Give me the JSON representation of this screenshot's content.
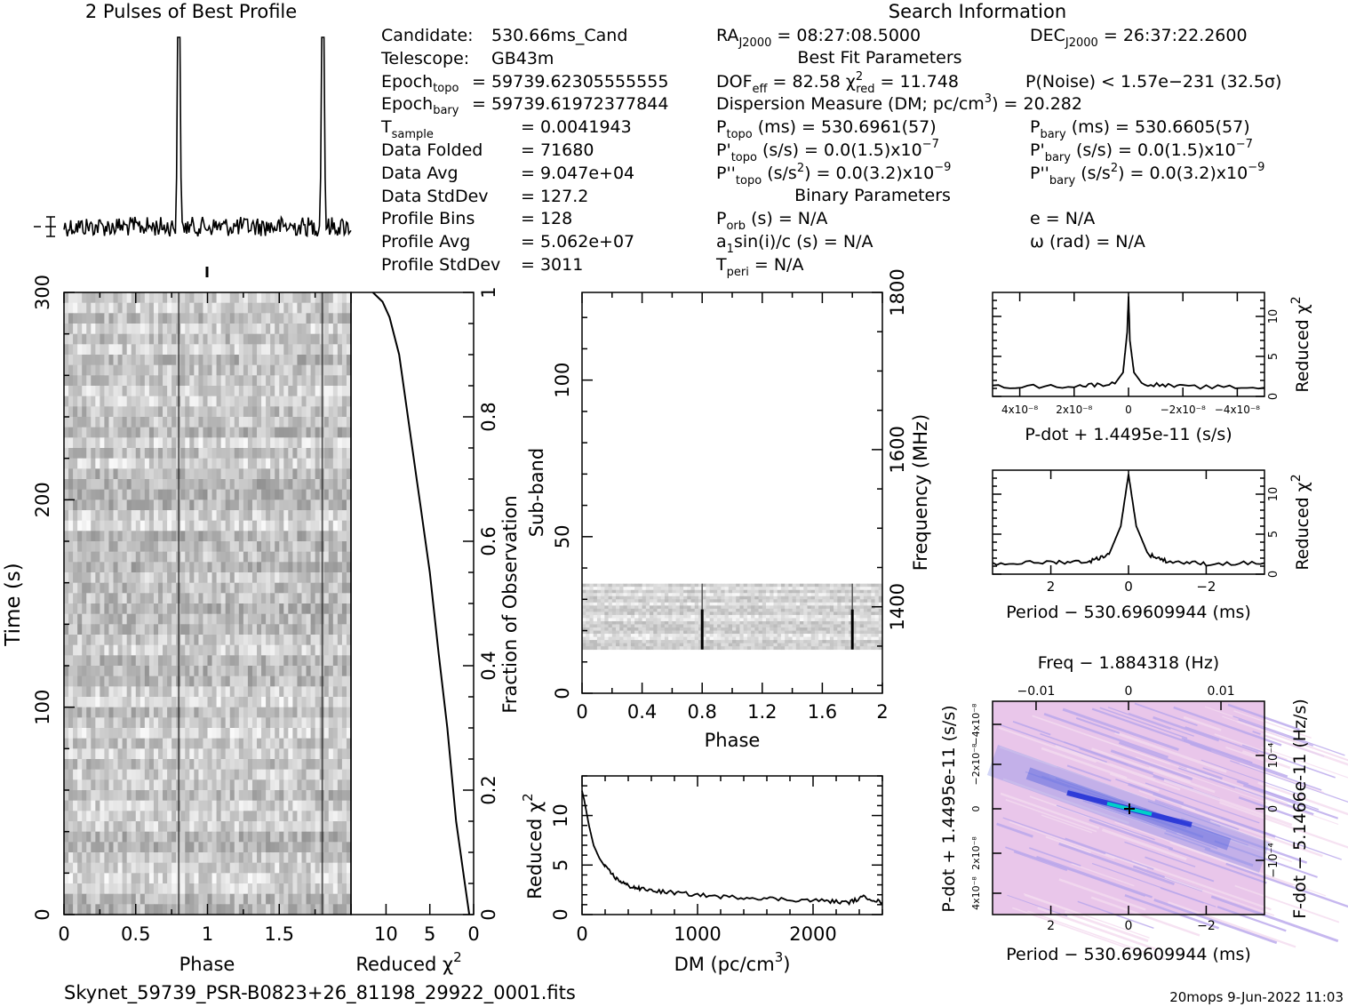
{
  "header": {
    "profile_title": "2 Pulses of Best Profile",
    "search_title": "Search Information",
    "best_fit_title": "Best Fit Parameters",
    "binary_title": "Binary Parameters"
  },
  "info_left": [
    {
      "label": "Candidate:",
      "value": "530.66ms_Cand"
    },
    {
      "label": "Telescope:",
      "value": "GB43m"
    },
    {
      "label": "Epoch_topo",
      "value": "= 59739.62305555555"
    },
    {
      "label": "Epoch_bary",
      "value": "= 59739.61972377844"
    },
    {
      "label": "T_sample",
      "value": "=  0.0041943"
    },
    {
      "label": "Data Folded",
      "value": "=  71680"
    },
    {
      "label": "Data Avg",
      "value": "=  9.047e+04"
    },
    {
      "label": "Data StdDev",
      "value": "=  127.2"
    },
    {
      "label": "Profile Bins",
      "value": "=  128"
    },
    {
      "label": "Profile Avg",
      "value": "=  5.062e+07"
    },
    {
      "label": "Profile StdDev",
      "value": "=  3011"
    }
  ],
  "info_mid": [
    "RA_J2000 = 08:27:08.5000",
    "DOF_eff = 82.58  χ²_red = 11.748",
    "Dispersion Measure (DM; pc/cm³) = 20.282",
    "P_topo (ms) =  530.6961(57)",
    "P'_topo (s/s) = 0.0(1.5)x10⁻⁷",
    "P''_topo (s/s²) = 0.0(3.2)x10⁻⁹",
    "P_orb (s) = N/A",
    "a₁sin(i)/c (s) = N/A",
    "T_peri = N/A"
  ],
  "info_right": [
    "DEC_J2000 = 26:37:22.2600",
    "P(Noise) < 1.57e-231  (32.5σ)",
    "P_bary (ms) =  530.6605(57)",
    "P'_bary (s/s) = 0.0(1.5)x10⁻⁷",
    "P''_bary (s/s²) = 0.0(3.2)x10⁻⁹",
    "e = N/A",
    "ω (rad) = N/A"
  ],
  "footer": {
    "filename": "Skynet_59739_PSR-B0823+26_81198_29922_0001.fits",
    "stamp": "20mops  9-Jun-2022 11:03"
  },
  "chart_data": [
    {
      "type": "line",
      "title": "2 Pulses of Best Profile",
      "x": "phase 0-2",
      "peaks_at_phase": [
        0.8,
        1.8
      ]
    },
    {
      "type": "heatmap",
      "xlabel": "Phase",
      "ylabel": "Time (s)",
      "xlim": [
        0,
        2
      ],
      "ylim": [
        0,
        300
      ],
      "xticks": [
        "0",
        "0.5",
        "1",
        "1.5"
      ],
      "yticks": [
        "0",
        "100",
        "200",
        "300"
      ],
      "pulse_phase": [
        0.8,
        1.8
      ]
    },
    {
      "type": "line",
      "xlabel": "Reduced χ²",
      "ylabel": "Fraction of Observation",
      "xticks": [
        "10",
        "5",
        "0"
      ],
      "yticks": [
        "0",
        "0.2",
        "0.4",
        "0.6",
        "0.8",
        "1"
      ],
      "x_reversed": true,
      "xlim": [
        14,
        0
      ],
      "points": [
        [
          0.5,
          0
        ],
        [
          1,
          0.05
        ],
        [
          2,
          0.15
        ],
        [
          3,
          0.3
        ],
        [
          4,
          0.42
        ],
        [
          5,
          0.55
        ],
        [
          6,
          0.65
        ],
        [
          6.5,
          0.7
        ],
        [
          7.2,
          0.77
        ],
        [
          7.8,
          0.83
        ],
        [
          8.5,
          0.9
        ],
        [
          9.6,
          0.96
        ],
        [
          10.4,
          0.985
        ],
        [
          11.5,
          1
        ]
      ]
    },
    {
      "type": "heatmap",
      "xlabel": "Phase",
      "ylabel": "Sub-band",
      "y2label": "Frequency (MHz)",
      "xlim": [
        0,
        2
      ],
      "ylim": [
        0,
        128
      ],
      "xticks": [
        "0",
        "0.4",
        "0.8",
        "1.2",
        "1.6",
        "2"
      ],
      "yticks": [
        "0",
        "50",
        "100"
      ],
      "y2ticks": [
        "1400",
        "1600",
        "1800"
      ],
      "data_subbands": [
        14,
        35
      ],
      "pulse_phase": [
        0.8,
        1.8
      ]
    },
    {
      "type": "line",
      "xlabel": "DM (pc/cm³)",
      "ylabel": "Reduced χ²",
      "xlim": [
        0,
        2600
      ],
      "ylim": [
        0,
        14
      ],
      "xticks": [
        "0",
        "1000",
        "2000"
      ],
      "yticks": [
        "0",
        "5",
        "10"
      ],
      "points": [
        [
          0,
          12.5
        ],
        [
          20,
          11.5
        ],
        [
          60,
          9
        ],
        [
          100,
          7
        ],
        [
          150,
          5.7
        ],
        [
          200,
          4.8
        ],
        [
          300,
          3.6
        ],
        [
          400,
          2.9
        ],
        [
          500,
          2.6
        ],
        [
          700,
          2.3
        ],
        [
          900,
          2.1
        ],
        [
          1200,
          1.8
        ],
        [
          1500,
          1.7
        ],
        [
          1800,
          1.5
        ],
        [
          2100,
          1.4
        ],
        [
          2300,
          1.2
        ],
        [
          2450,
          1.8
        ],
        [
          2600,
          1.2
        ]
      ]
    },
    {
      "type": "line",
      "xlabel": "P-dot + 1.4495e-11 (s/s)",
      "ylabel": "Reduced χ²",
      "xticks": [
        "4x10⁻⁸",
        "2x10⁻⁸",
        "0",
        "−2x10⁻⁸",
        "−4x10⁻⁸"
      ],
      "yticks": [
        "0",
        "5",
        "10"
      ],
      "xlim": [
        5e-08,
        -5e-08
      ],
      "ylim": [
        0,
        13
      ],
      "points": [
        [
          5e-08,
          1.2
        ],
        [
          2e-08,
          1.3
        ],
        [
          5e-09,
          1.6
        ],
        [
          2e-09,
          3
        ],
        [
          5e-10,
          8
        ],
        [
          0,
          12.5
        ],
        [
          -5e-10,
          7
        ],
        [
          -2e-09,
          3
        ],
        [
          -5e-09,
          1.6
        ],
        [
          -2e-08,
          1.2
        ],
        [
          -5e-08,
          1.1
        ]
      ]
    },
    {
      "type": "line",
      "xlabel": "Period − 530.69609944 (ms)",
      "ylabel": "Reduced χ²",
      "xticks": [
        "2",
        "0",
        "−2"
      ],
      "yticks": [
        "0",
        "5",
        "10"
      ],
      "xlim": [
        3.5,
        -3.5
      ],
      "ylim": [
        0,
        13
      ],
      "points": [
        [
          3.5,
          1.3
        ],
        [
          2,
          1.5
        ],
        [
          1,
          1.6
        ],
        [
          0.5,
          2.5
        ],
        [
          0.2,
          6
        ],
        [
          0,
          12.5
        ],
        [
          -0.2,
          6
        ],
        [
          -0.5,
          2.5
        ],
        [
          -1,
          1.6
        ],
        [
          -2,
          1.3
        ],
        [
          -3.5,
          1.4
        ]
      ]
    },
    {
      "type": "heatmap",
      "title": "Freq − 1.884318 (Hz)",
      "xlabel": "Period − 530.69609944 (ms)",
      "ylabel": "P-dot + 1.4495e-11 (s/s)",
      "y2label": "F-dot − 5.1466e-11 (Hz/s)",
      "xticks": [
        "2",
        "0",
        "−2"
      ],
      "x2ticks": [
        "−0.01",
        "0",
        "0.01"
      ],
      "yticks": [
        "4x10⁻⁸",
        "2x10⁻⁸",
        "0",
        "−2x10⁻⁸",
        "−4x10⁻⁸"
      ],
      "y2ticks": [
        "−10⁻⁴",
        "0",
        "10⁻⁴"
      ],
      "peak": [
        0,
        0
      ]
    }
  ]
}
